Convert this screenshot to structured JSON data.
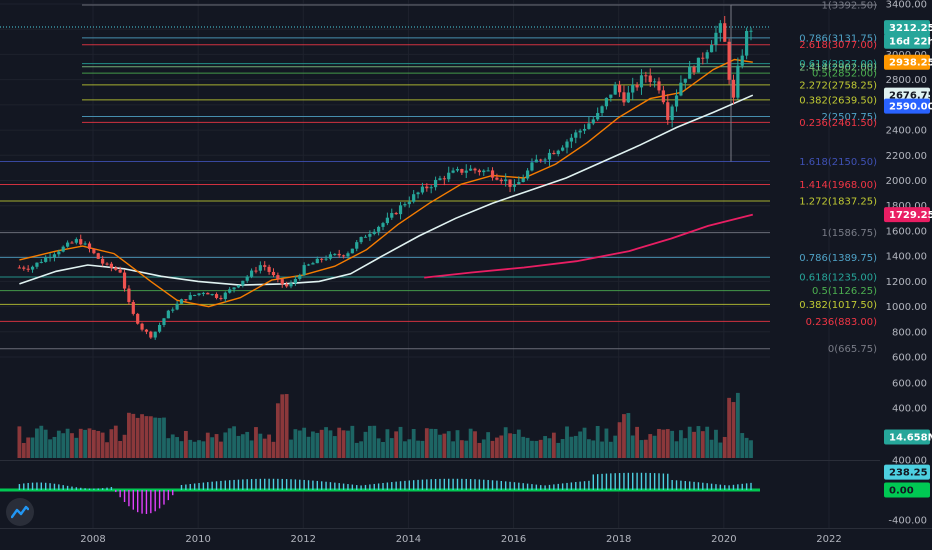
{
  "chart_data": {
    "type": "candlestick",
    "price_axis": {
      "ticks": [
        600,
        800,
        1000,
        1200,
        1400,
        1600,
        1800,
        2000,
        2200,
        2400,
        2600,
        2800,
        3000,
        3200,
        3400
      ],
      "range": [
        600,
        3400
      ]
    },
    "volume_axis": {
      "ticks": [
        200,
        400,
        600
      ],
      "range": [
        0,
        600
      ]
    },
    "osc_axis": {
      "ticks": [
        400,
        -400
      ],
      "range": [
        -400,
        400
      ]
    },
    "x_axis": {
      "ticks": [
        "2008",
        "2010",
        "2012",
        "2014",
        "2016",
        "2018",
        "2020",
        "2022"
      ]
    },
    "fib_upper": [
      {
        "label": "1(3392.50)",
        "value": 3392.5,
        "color": "#787b86"
      },
      {
        "label": "0.786(3131.75)",
        "value": 3131.75,
        "color": "#4fa3c7"
      },
      {
        "label": "2.618(3077.00)",
        "value": 3077.0,
        "color": "#f23645"
      },
      {
        "label": "0.618(2927.00)",
        "value": 2927.0,
        "color": "#26a69a"
      },
      {
        "label": "2.414(2902.00)",
        "value": 2902.0,
        "color": "#81c784"
      },
      {
        "label": "0.5(2852.00)",
        "value": 2852.0,
        "color": "#4caf50"
      },
      {
        "label": "2.272(2758.25)",
        "value": 2758.25,
        "color": "#c0ca33"
      },
      {
        "label": "0.382(2639.50)",
        "value": 2639.5,
        "color": "#c0ca33"
      },
      {
        "label": "2(2507.75)",
        "value": 2507.75,
        "color": "#4fa3c7"
      },
      {
        "label": "0.236(2461.50)",
        "value": 2461.5,
        "color": "#f23645"
      }
    ],
    "fib_lower": [
      {
        "label": "1.618(2150.50)",
        "value": 2150.5,
        "color": "#3f51b5"
      },
      {
        "label": "1.414(1968.00)",
        "value": 1968.0,
        "color": "#f23645"
      },
      {
        "label": "1.272(1837.25)",
        "value": 1837.25,
        "color": "#c0ca33"
      },
      {
        "label": "1(1586.75)",
        "value": 1586.75,
        "color": "#787b86"
      },
      {
        "label": "0.786(1389.75)",
        "value": 1389.75,
        "color": "#4fa3c7"
      },
      {
        "label": "0.618(1235.00)",
        "value": 1235.0,
        "color": "#26a69a"
      },
      {
        "label": "0.5(1126.25)",
        "value": 1126.25,
        "color": "#4caf50"
      },
      {
        "label": "0.382(1017.50)",
        "value": 1017.5,
        "color": "#c0ca33"
      },
      {
        "label": "0.236(883.00)",
        "value": 883.0,
        "color": "#f23645"
      },
      {
        "label": "0(665.75)",
        "value": 665.75,
        "color": "#787b86"
      }
    ],
    "badges": [
      {
        "label": "3212.25",
        "value": 3212.25,
        "bg": "#26a69a",
        "fg": "#ffffff"
      },
      {
        "label": "16d 22h",
        "value": 3105,
        "bg": "#26a69a",
        "fg": "#ffffff"
      },
      {
        "label": "2938.25",
        "value": 2938.25,
        "bg": "#ff9800",
        "fg": "#ffffff"
      },
      {
        "label": "2676.75",
        "value": 2676.75,
        "bg": "#e0f2f1",
        "fg": "#131722"
      },
      {
        "label": "2590.00",
        "value": 2590.0,
        "bg": "#2962ff",
        "fg": "#ffffff"
      },
      {
        "label": "1729.25",
        "value": 1729.25,
        "bg": "#e91e63",
        "fg": "#ffffff"
      }
    ],
    "volume_badge": {
      "label": "14.658M",
      "bg": "#26a69a",
      "fg": "#ffffff"
    },
    "osc_badges": [
      {
        "label": "238.25",
        "value": 238.25,
        "bg": "#4dd0e1",
        "fg": "#131722"
      },
      {
        "label": "0.00",
        "value": 0,
        "bg": "#00c853",
        "fg": "#131722"
      }
    ],
    "colors": {
      "up": "#26a69a",
      "down": "#ef5350",
      "ma_fast": "#f57c00",
      "ma_slow": "#e0f2f1",
      "ma_long": "#e91e63",
      "osc_pos": "#4dd0e1",
      "osc_neg": "#e040fb",
      "osc_zero": "#00c853"
    },
    "price_anchors": [
      [
        2006.9,
        1310
      ],
      [
        2007.3,
        1420
      ],
      [
        2007.8,
        1530
      ],
      [
        2008.0,
        1460
      ],
      [
        2008.3,
        1330
      ],
      [
        2008.6,
        1280
      ],
      [
        2008.8,
        970
      ],
      [
        2009.0,
        830
      ],
      [
        2009.2,
        760
      ],
      [
        2009.5,
        950
      ],
      [
        2009.8,
        1060
      ],
      [
        2010.2,
        1120
      ],
      [
        2010.5,
        1070
      ],
      [
        2010.9,
        1200
      ],
      [
        2011.3,
        1340
      ],
      [
        2011.6,
        1200
      ],
      [
        2011.8,
        1150
      ],
      [
        2012.1,
        1310
      ],
      [
        2012.5,
        1390
      ],
      [
        2012.9,
        1420
      ],
      [
        2013.3,
        1580
      ],
      [
        2013.7,
        1690
      ],
      [
        2014.0,
        1820
      ],
      [
        2014.4,
        1940
      ],
      [
        2014.8,
        2040
      ],
      [
        2015.2,
        2090
      ],
      [
        2015.6,
        2070
      ],
      [
        2015.9,
        2010
      ],
      [
        2016.1,
        1940
      ],
      [
        2016.5,
        2150
      ],
      [
        2016.9,
        2250
      ],
      [
        2017.3,
        2380
      ],
      [
        2017.7,
        2520
      ],
      [
        2018.0,
        2750
      ],
      [
        2018.2,
        2650
      ],
      [
        2018.6,
        2840
      ],
      [
        2018.9,
        2730
      ],
      [
        2019.0,
        2500
      ],
      [
        2019.3,
        2820
      ],
      [
        2019.6,
        2930
      ],
      [
        2019.9,
        3150
      ],
      [
        2020.05,
        3220
      ],
      [
        2020.15,
        2950
      ],
      [
        2020.25,
        2590
      ],
      [
        2020.35,
        2870
      ],
      [
        2020.45,
        3050
      ],
      [
        2020.55,
        3212
      ]
    ],
    "ma_fast": [
      [
        2006.6,
        1370
      ],
      [
        2007.3,
        1440
      ],
      [
        2007.8,
        1480
      ],
      [
        2008.4,
        1420
      ],
      [
        2009.1,
        1200
      ],
      [
        2009.6,
        1050
      ],
      [
        2010.2,
        1000
      ],
      [
        2010.8,
        1070
      ],
      [
        2011.4,
        1210
      ],
      [
        2012.0,
        1250
      ],
      [
        2012.6,
        1320
      ],
      [
        2013.2,
        1450
      ],
      [
        2013.8,
        1650
      ],
      [
        2014.4,
        1820
      ],
      [
        2015.0,
        1970
      ],
      [
        2015.6,
        2040
      ],
      [
        2016.2,
        2020
      ],
      [
        2016.8,
        2130
      ],
      [
        2017.4,
        2300
      ],
      [
        2018.0,
        2500
      ],
      [
        2018.6,
        2650
      ],
      [
        2019.2,
        2700
      ],
      [
        2019.8,
        2880
      ],
      [
        2020.2,
        2960
      ],
      [
        2020.55,
        2938
      ]
    ],
    "ma_slow": [
      [
        2006.6,
        1180
      ],
      [
        2007.3,
        1280
      ],
      [
        2007.9,
        1330
      ],
      [
        2008.6,
        1300
      ],
      [
        2009.3,
        1240
      ],
      [
        2010.0,
        1200
      ],
      [
        2010.8,
        1170
      ],
      [
        2011.6,
        1180
      ],
      [
        2012.3,
        1200
      ],
      [
        2012.9,
        1260
      ],
      [
        2013.5,
        1400
      ],
      [
        2014.2,
        1560
      ],
      [
        2014.9,
        1700
      ],
      [
        2015.6,
        1820
      ],
      [
        2016.3,
        1920
      ],
      [
        2017.0,
        2020
      ],
      [
        2017.7,
        2150
      ],
      [
        2018.4,
        2280
      ],
      [
        2019.1,
        2420
      ],
      [
        2019.8,
        2540
      ],
      [
        2020.55,
        2676.75
      ]
    ],
    "ma_long": [
      [
        2014.3,
        1230
      ],
      [
        2015.2,
        1270
      ],
      [
        2016.2,
        1310
      ],
      [
        2017.2,
        1360
      ],
      [
        2018.2,
        1440
      ],
      [
        2019.0,
        1540
      ],
      [
        2019.7,
        1640
      ],
      [
        2020.55,
        1729.25
      ]
    ]
  }
}
